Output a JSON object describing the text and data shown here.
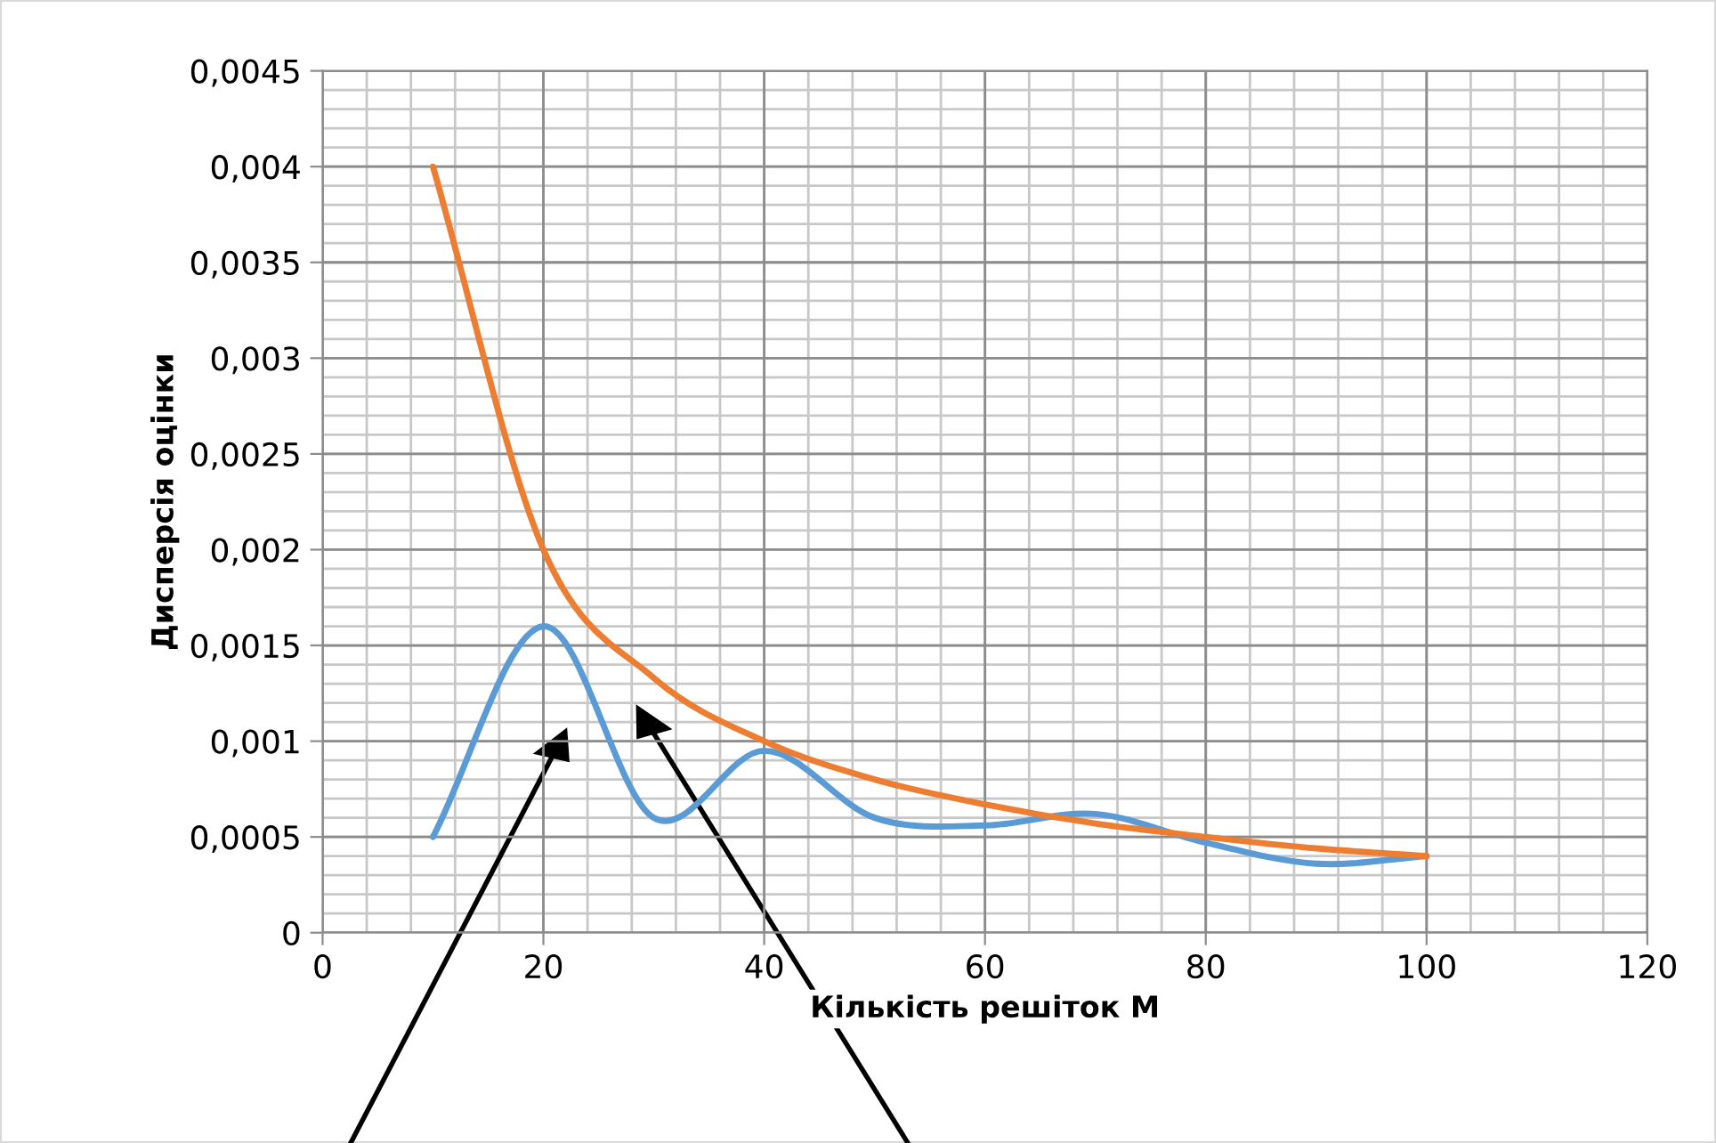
{
  "chart_data": {
    "type": "line",
    "xlabel": "Кількість решіток M",
    "ylabel": "Дисперсія оцінки",
    "x": [
      10,
      20,
      30,
      40,
      50,
      60,
      70,
      80,
      90,
      100
    ],
    "series": [
      {
        "color": "#5b9bd5",
        "values": [
          0.0005,
          0.0016,
          0.0006,
          0.00095,
          0.0006,
          0.00056,
          0.00062,
          0.00047,
          0.00036,
          0.0004
        ]
      },
      {
        "color": "#ed7d31",
        "values": [
          0.004,
          0.002,
          0.00133,
          0.001,
          0.0008,
          0.00067,
          0.00057,
          0.0005,
          0.00044,
          0.0004
        ]
      }
    ],
    "xlim": [
      0,
      120
    ],
    "xticks": [
      0,
      20,
      40,
      60,
      80,
      100,
      120
    ],
    "ylim": [
      0,
      0.0045
    ],
    "yticks": [
      {
        "value": 0,
        "label": "0"
      },
      {
        "value": 0.0005,
        "label": "0,0005"
      },
      {
        "value": 0.001,
        "label": "0,001"
      },
      {
        "value": 0.0015,
        "label": "0,0015"
      },
      {
        "value": 0.002,
        "label": "0,002"
      },
      {
        "value": 0.0025,
        "label": "0,0025"
      },
      {
        "value": 0.003,
        "label": "0,003"
      },
      {
        "value": 0.0035,
        "label": "0,0035"
      },
      {
        "value": 0.004,
        "label": "0,004"
      },
      {
        "value": 0.0045,
        "label": "0,0045"
      }
    ],
    "grid": true,
    "marker": "none",
    "line_style": "solid"
  }
}
